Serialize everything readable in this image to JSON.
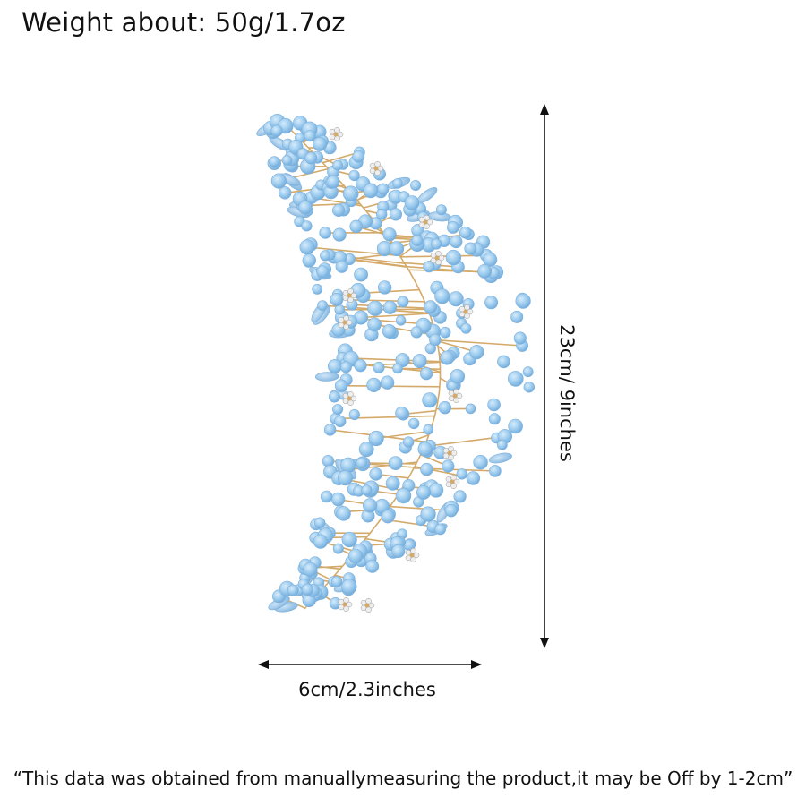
{
  "header": {
    "weight_text": "Weight about: 50g/1.7oz"
  },
  "product": {
    "image_name": "light-blue-opal-crystal-hair-vine",
    "colors": {
      "stone": "#8fc2e8",
      "stone_light": "#c7e2f7",
      "wire": "#d4aa6a",
      "rhinestone": "#e6e6e6"
    }
  },
  "dimensions": {
    "height_label": "23cm/ 9inches",
    "width_label": "6cm/2.3inches"
  },
  "footer": {
    "note": "“This data was obtained from manuallymeasuring the product,it may be Off by 1-2cm”"
  }
}
